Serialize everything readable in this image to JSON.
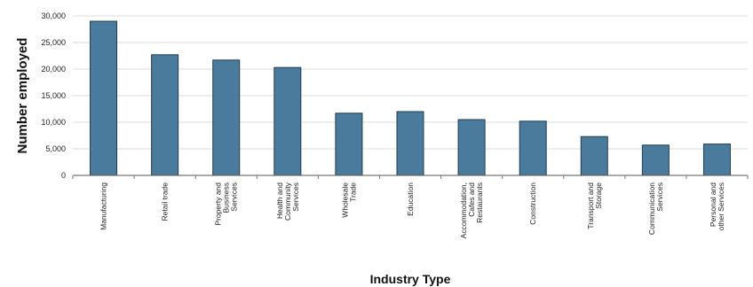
{
  "chart_data": {
    "type": "bar",
    "title": "",
    "xlabel": "Industry Type",
    "ylabel": "Number employed",
    "ylim": [
      0,
      30000
    ],
    "yticks": [
      0,
      5000,
      10000,
      15000,
      20000,
      25000,
      30000
    ],
    "ytick_labels": [
      "0",
      "5,000",
      "10,000",
      "15,000",
      "20,000",
      "25,000",
      "30,000"
    ],
    "grid": true,
    "categories": [
      "Manufacturing",
      "Retail trade",
      "Property and Business Services",
      "Health and Community Services",
      "Wholesale Trade",
      "Education",
      "Accommodation, Cafes and Restaurants",
      "Construction",
      "Transport and Storage",
      "Communication Services",
      "Personal and other Services"
    ],
    "category_label_lines": [
      [
        "Manufacturing"
      ],
      [
        "Retail trade"
      ],
      [
        "Property and",
        "Business",
        "Services"
      ],
      [
        "Health and",
        "Community",
        "Services"
      ],
      [
        "Wholesale",
        "Trade"
      ],
      [
        "Education"
      ],
      [
        "Accommodation,",
        "Cafes and",
        "Restaurants"
      ],
      [
        "Construction"
      ],
      [
        "Transport and",
        "Storage"
      ],
      [
        "Communication",
        "Services"
      ],
      [
        "Personal and",
        "other Services"
      ]
    ],
    "values": [
      29000,
      22700,
      21700,
      20300,
      11700,
      12000,
      10500,
      10200,
      7300,
      5700,
      5900
    ],
    "bar_color": "#4a7a9c",
    "bar_stroke": "#1f3d52",
    "grid_color": "#dddddd"
  }
}
